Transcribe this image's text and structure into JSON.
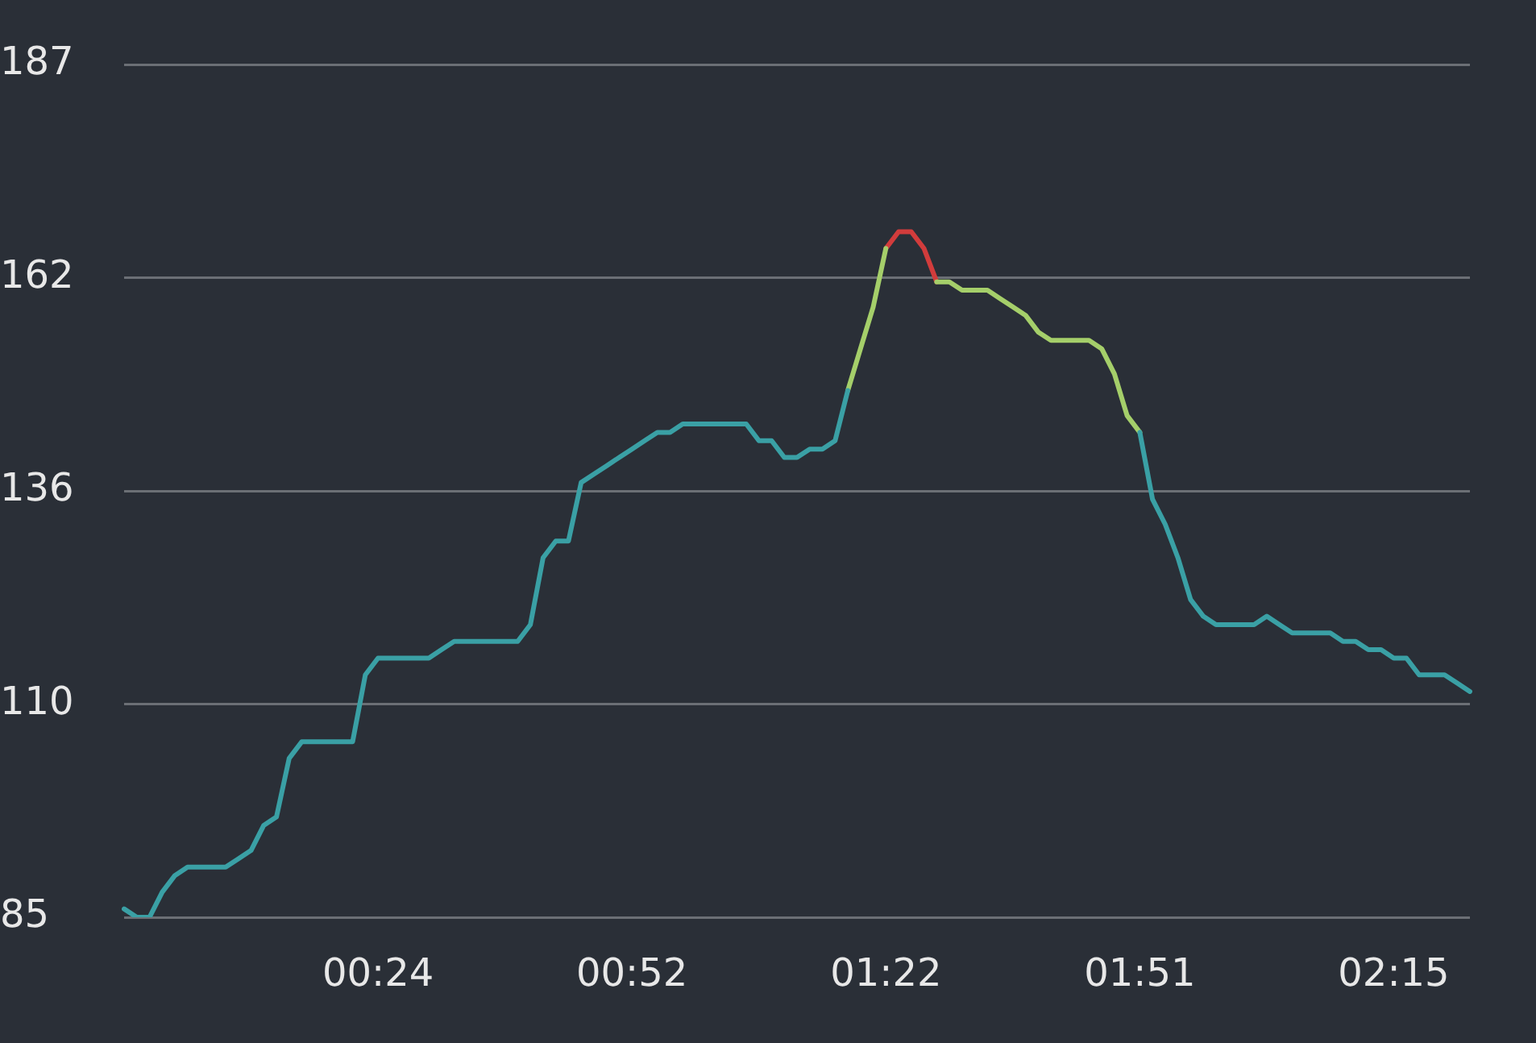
{
  "chart_data": {
    "type": "line",
    "categories": [
      null,
      null,
      null,
      null,
      null,
      null,
      null,
      null,
      null,
      null,
      null,
      null,
      null,
      null,
      null,
      null,
      null,
      null,
      null,
      null,
      "00:24",
      null,
      null,
      null,
      null,
      null,
      null,
      null,
      null,
      null,
      null,
      null,
      null,
      null,
      null,
      null,
      null,
      null,
      null,
      null,
      "00:52",
      null,
      null,
      null,
      null,
      null,
      null,
      null,
      null,
      null,
      null,
      null,
      null,
      null,
      null,
      null,
      null,
      null,
      null,
      null,
      "01:22",
      null,
      null,
      null,
      null,
      null,
      null,
      null,
      null,
      null,
      null,
      null,
      null,
      null,
      null,
      null,
      null,
      null,
      null,
      null,
      "01:51",
      null,
      null,
      null,
      null,
      null,
      null,
      null,
      null,
      null,
      null,
      null,
      null,
      null,
      null,
      null,
      null,
      null,
      null,
      null,
      "02:15",
      null,
      null,
      null,
      null,
      null,
      null
    ],
    "series": [
      {
        "color": "#3aa0a5",
        "values": [
          86,
          85,
          85,
          88,
          90,
          91,
          91,
          91,
          91,
          92,
          93,
          96,
          97,
          104,
          106,
          106,
          106,
          106,
          106,
          114,
          116,
          116,
          116,
          116,
          116,
          117,
          118,
          118,
          118,
          118,
          118,
          118,
          120,
          128,
          130,
          130,
          137,
          138,
          139,
          140,
          141,
          142,
          143,
          143,
          144,
          144,
          144,
          144,
          144,
          144,
          142,
          142,
          140,
          140,
          141,
          141,
          142,
          148,
          null,
          null,
          null,
          null,
          null,
          null,
          null,
          null,
          null,
          null,
          null,
          null,
          null,
          null,
          null,
          null,
          null,
          null,
          null,
          null,
          null,
          null,
          143,
          135,
          132,
          128,
          123,
          121,
          120,
          120,
          120,
          120,
          121,
          120,
          119,
          119,
          119,
          119,
          118,
          118,
          117,
          117,
          116,
          116,
          114,
          114,
          114,
          113,
          112
        ]
      },
      {
        "color": "#a5cf6a",
        "values": [
          null,
          null,
          null,
          null,
          null,
          null,
          null,
          null,
          null,
          null,
          null,
          null,
          null,
          null,
          null,
          null,
          null,
          null,
          null,
          null,
          null,
          null,
          null,
          null,
          null,
          null,
          null,
          null,
          null,
          null,
          null,
          null,
          null,
          null,
          null,
          null,
          null,
          null,
          null,
          null,
          null,
          null,
          null,
          null,
          null,
          null,
          null,
          null,
          null,
          null,
          null,
          null,
          null,
          null,
          null,
          null,
          null,
          148,
          153,
          158,
          165,
          null,
          null,
          null,
          161,
          161,
          160,
          160,
          160,
          159,
          158,
          157,
          155,
          154,
          154,
          154,
          154,
          153,
          150,
          145,
          143,
          null,
          null,
          null,
          null,
          null,
          null,
          null,
          null,
          null,
          null,
          null,
          null,
          null,
          null,
          null,
          null,
          null,
          null,
          null,
          null,
          null,
          null,
          null,
          null,
          null,
          null
        ]
      },
      {
        "color": "#d23c3c",
        "values": [
          null,
          null,
          null,
          null,
          null,
          null,
          null,
          null,
          null,
          null,
          null,
          null,
          null,
          null,
          null,
          null,
          null,
          null,
          null,
          null,
          null,
          null,
          null,
          null,
          null,
          null,
          null,
          null,
          null,
          null,
          null,
          null,
          null,
          null,
          null,
          null,
          null,
          null,
          null,
          null,
          null,
          null,
          null,
          null,
          null,
          null,
          null,
          null,
          null,
          null,
          null,
          null,
          null,
          null,
          null,
          null,
          null,
          null,
          null,
          null,
          165,
          167,
          167,
          165,
          161,
          null,
          null,
          null,
          null,
          null,
          null,
          null,
          null,
          null,
          null,
          null,
          null,
          null,
          null,
          null,
          null,
          null,
          null,
          null,
          null,
          null,
          null,
          null,
          null,
          null,
          null,
          null,
          null,
          null,
          null,
          null,
          null,
          null,
          null,
          null,
          null,
          null,
          null,
          null,
          null,
          null,
          null
        ]
      }
    ],
    "ylim": [
      85,
      187
    ],
    "yticks": [
      85,
      {
        "value": 110.5,
        "label": "110"
      },
      136,
      {
        "value": 161.5,
        "label": "162"
      },
      187
    ],
    "grid": "y",
    "marker": "none",
    "line_style": "solid"
  }
}
